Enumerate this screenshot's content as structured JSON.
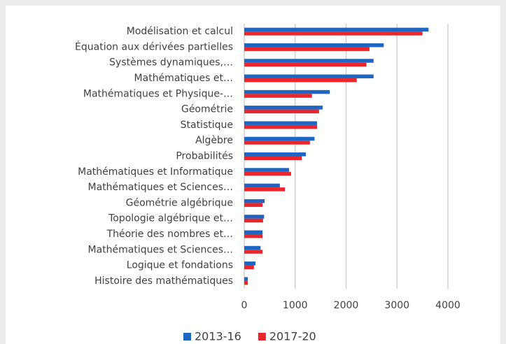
{
  "chart_data": {
    "type": "barh",
    "categories": [
      "Modélisation et calcul",
      "Équation aux dérivées partielles",
      "Systèmes dynamiques,…",
      "Mathématiques et…",
      "Mathématiques et Physique-…",
      "Géométrie",
      "Statistique",
      "Algèbre",
      "Probabilités",
      "Mathématiques et Informatique",
      "Mathématiques et Sciences…",
      "Géométrie algébrique",
      "Topologie algébrique et…",
      "Théorie des nombres et…",
      "Mathématiques et Sciences…",
      "Logique et fondations",
      "Histoire des mathématiques"
    ],
    "series": [
      {
        "name": "2013-16",
        "color": "#1f66c2",
        "values": [
          3620,
          2740,
          2540,
          2540,
          1680,
          1540,
          1430,
          1380,
          1210,
          880,
          700,
          400,
          390,
          360,
          320,
          220,
          70
        ]
      },
      {
        "name": "2017-20",
        "color": "#e8262b",
        "values": [
          3500,
          2460,
          2400,
          2210,
          1330,
          1470,
          1430,
          1290,
          1130,
          920,
          800,
          360,
          370,
          360,
          360,
          190,
          70
        ]
      }
    ],
    "xlim": [
      0,
      4000
    ],
    "xticks": [
      0,
      1000,
      2000,
      3000,
      4000
    ],
    "grid": true,
    "legend": "bottom"
  }
}
